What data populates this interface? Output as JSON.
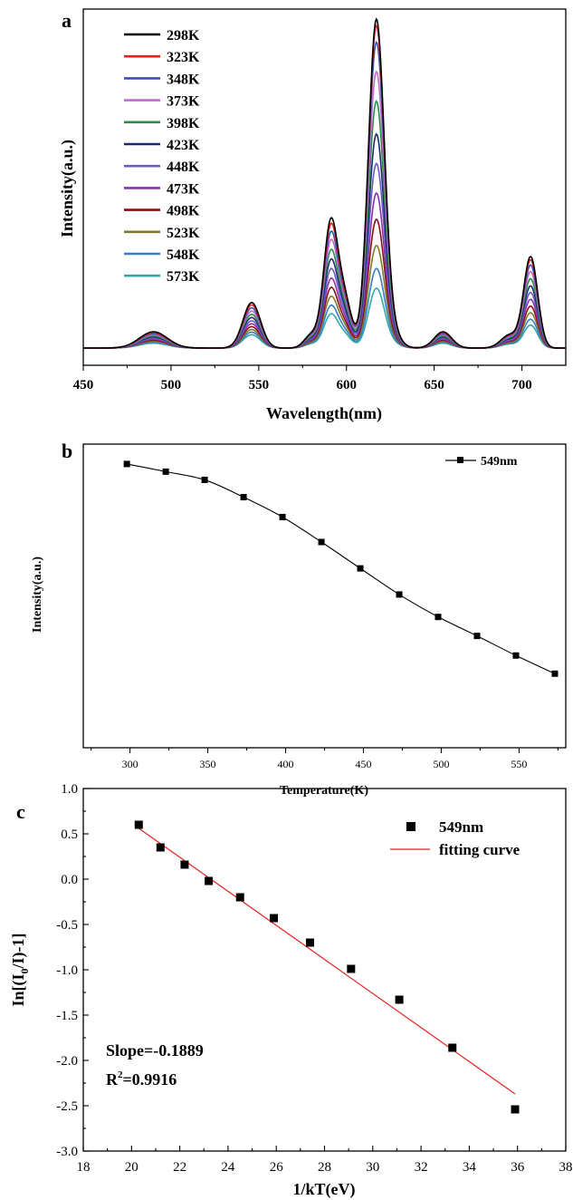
{
  "panels": {
    "a": {
      "label": "a"
    },
    "b": {
      "label": "b"
    },
    "c": {
      "label": "c"
    }
  },
  "chart_data": [
    {
      "type": "line",
      "panel": "a",
      "xlabel": "Wavelength(nm)",
      "ylabel": "Intensity(a.u.)",
      "xlim": [
        450,
        725
      ],
      "xticks": [
        "450",
        "500",
        "550",
        "600",
        "650",
        "700"
      ],
      "xtick_values": [
        450,
        500,
        550,
        600,
        650,
        700
      ],
      "yticks": [],
      "peaks": [
        {
          "center": 490,
          "width": 8
        },
        {
          "center": 546,
          "width": 5
        },
        {
          "center": 580,
          "width": 4
        },
        {
          "center": 591,
          "width": 4
        },
        {
          "center": 599,
          "width": 4
        },
        {
          "center": 617,
          "width": 4.5
        },
        {
          "center": 625,
          "width": 5
        },
        {
          "center": 655,
          "width": 5
        },
        {
          "center": 693,
          "width": 5
        },
        {
          "center": 705,
          "width": 4
        }
      ],
      "series": [
        {
          "name": "298K",
          "color": "#000000",
          "peak_heights": [
            0.05,
            0.14,
            0.04,
            0.38,
            0.14,
            1.0,
            0.05,
            0.05,
            0.04,
            0.28
          ]
        },
        {
          "name": "323K",
          "color": "#e8201e",
          "peak_heights": [
            0.047,
            0.133,
            0.038,
            0.364,
            0.133,
            0.98,
            0.048,
            0.047,
            0.038,
            0.27
          ]
        },
        {
          "name": "348K",
          "color": "#3b4fb3",
          "peak_heights": [
            0.044,
            0.124,
            0.036,
            0.341,
            0.125,
            0.93,
            0.045,
            0.044,
            0.036,
            0.254
          ]
        },
        {
          "name": "373K",
          "color": "#c06bd0",
          "peak_heights": [
            0.041,
            0.114,
            0.033,
            0.317,
            0.116,
            0.84,
            0.042,
            0.041,
            0.033,
            0.234
          ]
        },
        {
          "name": "398K",
          "color": "#2a8d47",
          "peak_heights": [
            0.037,
            0.104,
            0.03,
            0.288,
            0.105,
            0.75,
            0.038,
            0.037,
            0.03,
            0.212
          ]
        },
        {
          "name": "423K",
          "color": "#1d2a6b",
          "peak_heights": [
            0.034,
            0.094,
            0.027,
            0.26,
            0.095,
            0.65,
            0.034,
            0.034,
            0.027,
            0.19
          ]
        },
        {
          "name": "448K",
          "color": "#6a5ac8",
          "peak_heights": [
            0.03,
            0.084,
            0.024,
            0.232,
            0.085,
            0.56,
            0.031,
            0.03,
            0.024,
            0.17
          ]
        },
        {
          "name": "473K",
          "color": "#8a2fb0",
          "peak_heights": [
            0.027,
            0.075,
            0.021,
            0.204,
            0.075,
            0.47,
            0.027,
            0.027,
            0.021,
            0.149
          ]
        },
        {
          "name": "498K",
          "color": "#8b0d0d",
          "peak_heights": [
            0.024,
            0.066,
            0.019,
            0.177,
            0.065,
            0.39,
            0.024,
            0.024,
            0.019,
            0.128
          ]
        },
        {
          "name": "523K",
          "color": "#7d7a2a",
          "peak_heights": [
            0.021,
            0.057,
            0.016,
            0.151,
            0.056,
            0.31,
            0.021,
            0.021,
            0.016,
            0.108
          ]
        },
        {
          "name": "548K",
          "color": "#3a7ec7",
          "peak_heights": [
            0.018,
            0.049,
            0.014,
            0.125,
            0.046,
            0.24,
            0.018,
            0.018,
            0.014,
            0.088
          ]
        },
        {
          "name": "573K",
          "color": "#2ea8a8",
          "peak_heights": [
            0.015,
            0.041,
            0.012,
            0.1,
            0.037,
            0.18,
            0.015,
            0.015,
            0.012,
            0.07
          ]
        }
      ]
    },
    {
      "type": "line",
      "panel": "b",
      "xlabel": "Temperature(K)",
      "ylabel": "Intensity(a.u.)",
      "xlim": [
        270,
        580
      ],
      "ylim": [
        0,
        1.07
      ],
      "xticks": [
        "300",
        "350",
        "400",
        "450",
        "500",
        "550"
      ],
      "xtick_values": [
        300,
        350,
        400,
        450,
        500,
        550
      ],
      "yticks": [],
      "series": [
        {
          "name": "549nm",
          "color": "#000000",
          "x": [
            298,
            323,
            348,
            373,
            398,
            423,
            448,
            473,
            498,
            523,
            548,
            573
          ],
          "y": [
            1.0,
            0.973,
            0.944,
            0.883,
            0.813,
            0.725,
            0.632,
            0.54,
            0.461,
            0.394,
            0.325,
            0.261
          ]
        }
      ]
    },
    {
      "type": "scatter",
      "panel": "c",
      "xlabel": "1/kT(eV)",
      "ylabel_parts": [
        "In[(I",
        "0",
        "/I)-1]"
      ],
      "xlim": [
        18,
        38
      ],
      "ylim": [
        -3.0,
        1.0
      ],
      "xticks": [
        "18",
        "20",
        "22",
        "24",
        "26",
        "28",
        "30",
        "32",
        "34",
        "36",
        "38"
      ],
      "xtick_values": [
        18,
        20,
        22,
        24,
        26,
        28,
        30,
        32,
        34,
        36,
        38
      ],
      "yticks": [
        "1.0",
        "0.5",
        "0.0",
        "-0.5",
        "-1.0",
        "-1.5",
        "-2.0",
        "-2.5",
        "-3.0"
      ],
      "ytick_values": [
        1.0,
        0.5,
        0.0,
        -0.5,
        -1.0,
        -1.5,
        -2.0,
        -2.5,
        -3.0
      ],
      "series": [
        {
          "name": "549nm",
          "color": "#000000",
          "x": [
            20.3,
            21.2,
            22.2,
            23.2,
            24.5,
            25.9,
            27.4,
            29.1,
            31.1,
            33.3,
            35.9
          ],
          "y": [
            0.6,
            0.35,
            0.16,
            -0.02,
            -0.2,
            -0.43,
            -0.7,
            -0.99,
            -1.33,
            -1.86,
            -2.54
          ]
        }
      ],
      "fit": {
        "name": "fitting curve",
        "color": "#e8201e",
        "x": [
          20.2,
          35.9
        ],
        "y": [
          0.58,
          -2.37
        ]
      },
      "annotations": {
        "slope": "Slope=-0.1889",
        "r2_prefix": "R",
        "r2_sup": "2",
        "r2_value": "=0.9916"
      }
    }
  ]
}
